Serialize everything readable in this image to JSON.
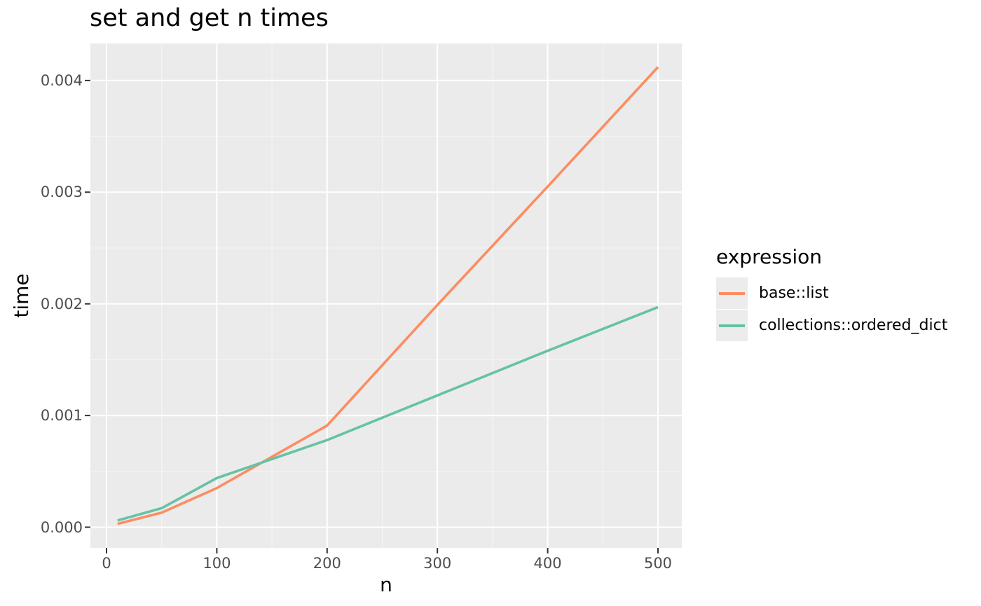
{
  "title": "set and get n times",
  "axes": {
    "x": {
      "title": "n",
      "tick_values": [
        0,
        100,
        200,
        300,
        400,
        500
      ],
      "tick_labels": [
        "0",
        "100",
        "200",
        "300",
        "400",
        "500"
      ]
    },
    "y": {
      "title": "time",
      "tick_values": [
        0,
        0.001,
        0.002,
        0.003,
        0.004
      ],
      "tick_labels": [
        "0.000",
        "0.001",
        "0.002",
        "0.003",
        "0.004"
      ]
    }
  },
  "legend": {
    "title": "expression",
    "items": [
      {
        "label": "base::list",
        "color": "#FC8D62"
      },
      {
        "label": "collections::ordered_dict",
        "color": "#66C2A5"
      }
    ]
  },
  "colors": {
    "background": "#FFFFFF",
    "panel_bg": "#EBEBEB",
    "grid_major": "#FFFFFF",
    "grid_minor": "#F5F5F5",
    "tick_mark": "#333333",
    "tick_text": "#4D4D4D",
    "text": "#000000",
    "series_orange": "#FC8D62",
    "series_green": "#66C2A5",
    "legend_key_bg": "#ECECEC"
  },
  "chart_data": {
    "type": "line",
    "title": "set and get n times",
    "xlabel": "n",
    "ylabel": "time",
    "x": [
      10,
      50,
      100,
      200,
      300,
      400,
      500
    ],
    "series": [
      {
        "name": "base::list",
        "color": "#FC8D62",
        "values": [
          3e-05,
          0.00013,
          0.00035,
          0.00091,
          0.00199,
          0.00305,
          0.00412
        ]
      },
      {
        "name": "collections::ordered_dict",
        "color": "#66C2A5",
        "values": [
          6e-05,
          0.00017,
          0.00044,
          0.00078,
          0.00118,
          0.00158,
          0.00197
        ]
      }
    ],
    "xlim": [
      0,
      500
    ],
    "ylim": [
      0,
      0.0042
    ],
    "grid": true,
    "legend_position": "right",
    "legend_title": "expression",
    "panel_background": "#EBEBEB"
  }
}
